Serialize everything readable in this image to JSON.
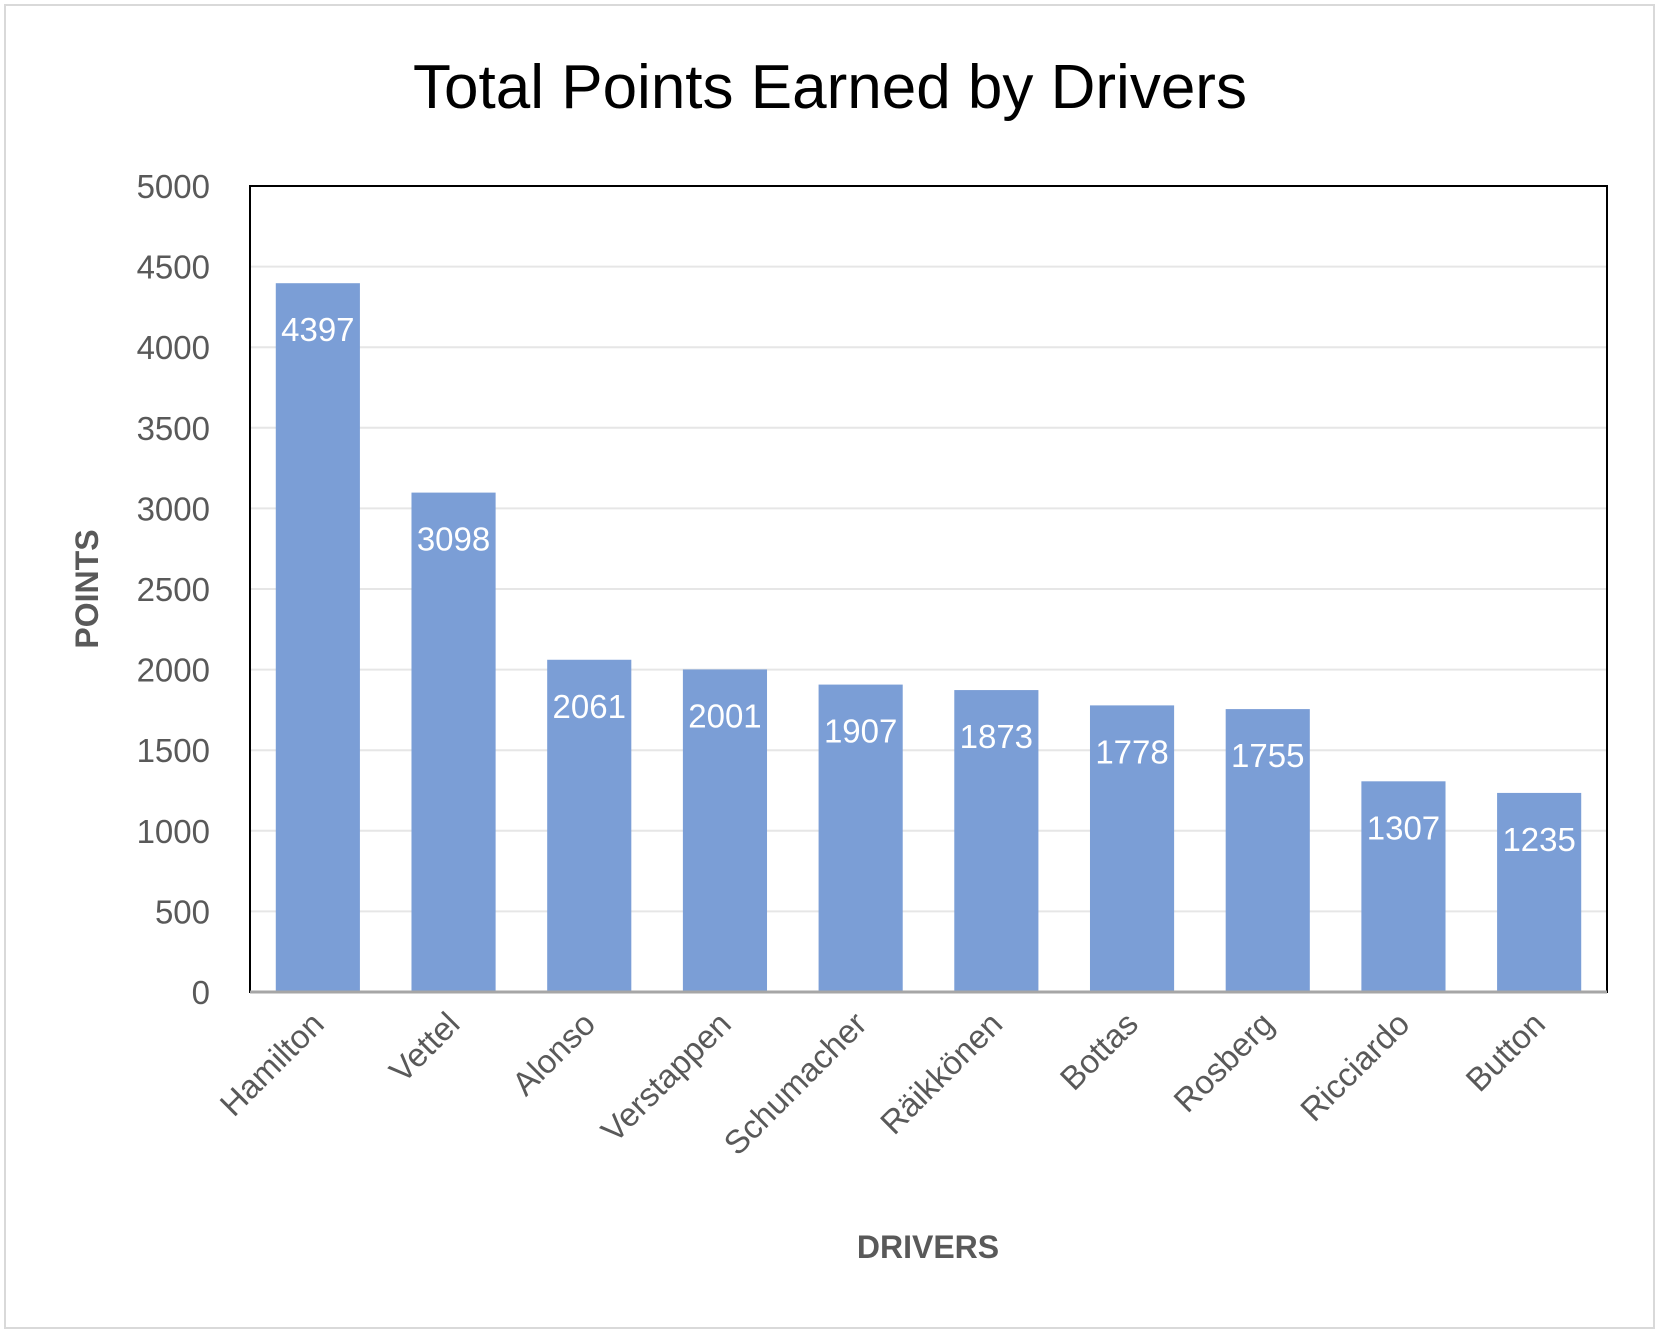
{
  "chart_data": {
    "type": "bar",
    "title": "Total Points Earned by Drivers",
    "xlabel": "DRIVERS",
    "ylabel": "POINTS",
    "categories": [
      "Hamilton",
      "Vettel",
      "Alonso",
      "Verstappen",
      "Schumacher",
      "Räikkönen",
      "Bottas",
      "Rosberg",
      "Ricciardo",
      "Button"
    ],
    "values": [
      4397,
      3098,
      2061,
      2001,
      1907,
      1873,
      1778,
      1755,
      1307,
      1235
    ],
    "ylim": [
      0,
      5000
    ],
    "yticks": [
      0,
      500,
      1000,
      1500,
      2000,
      2500,
      3000,
      3500,
      4000,
      4500,
      5000
    ],
    "grid": true,
    "legend": "none",
    "bar_color": "#7b9ed6",
    "data_label_color": "#ffffff",
    "gridline_color": "#e6e6e6",
    "axis_color": "#a6a6a6"
  }
}
